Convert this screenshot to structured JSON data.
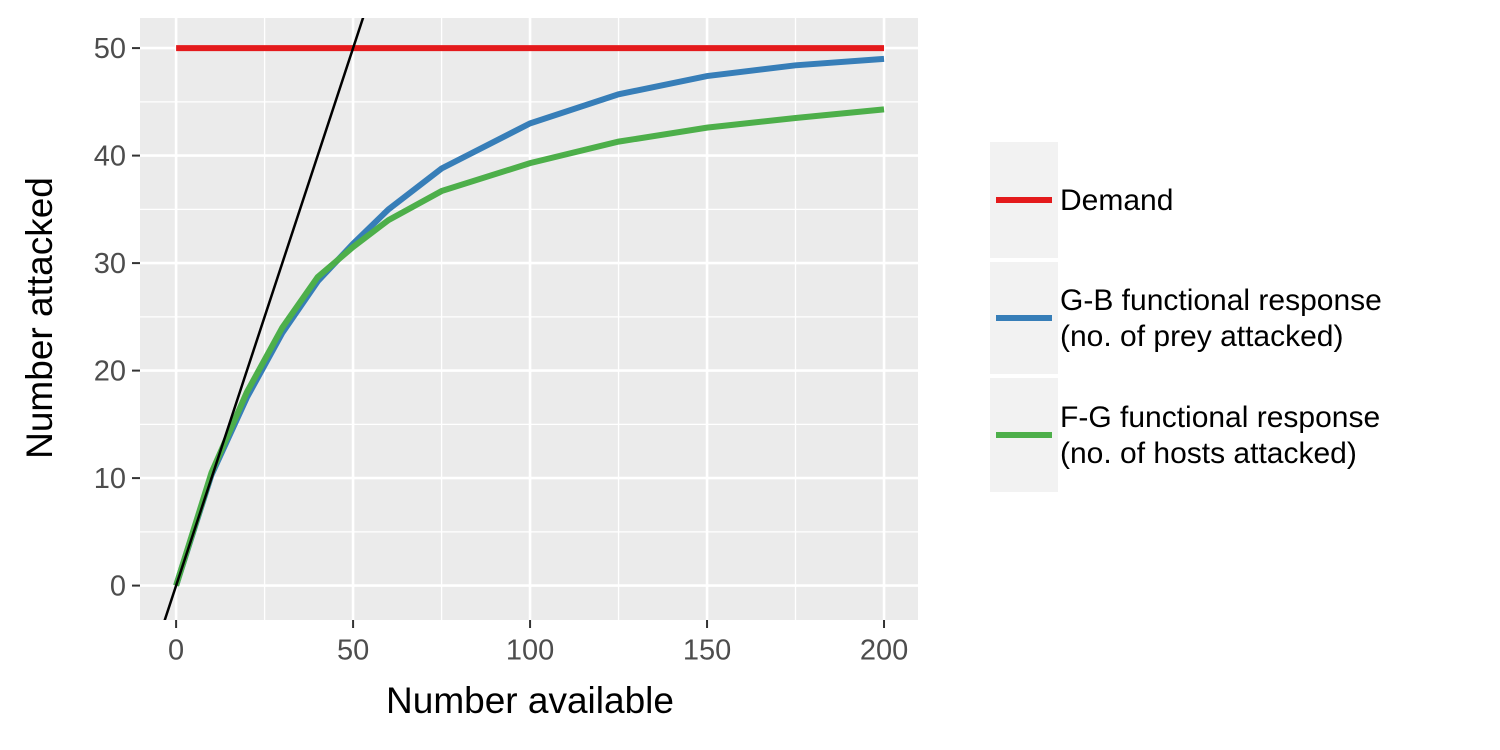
{
  "chart_data": {
    "type": "line",
    "xlabel": "Number available",
    "ylabel": "Number attacked",
    "xlim": [
      -10.2,
      209.6
    ],
    "ylim": [
      -3.2,
      52.8
    ],
    "xticks": [
      0,
      50,
      100,
      150,
      200
    ],
    "yticks": [
      0,
      10,
      20,
      30,
      40,
      50
    ],
    "grid": true,
    "legend": "right",
    "series": [
      {
        "name": "Demand",
        "color": "#e41a1c",
        "x": [
          0,
          200
        ],
        "values": [
          50,
          50
        ]
      },
      {
        "name": "G-B functional response\n(no. of prey attacked)",
        "color": "#377eb8",
        "x": [
          0,
          10,
          20,
          30,
          40,
          50,
          60,
          75,
          100,
          125,
          150,
          175,
          200
        ],
        "values": [
          0,
          10.3,
          17.5,
          23.5,
          28.3,
          31.8,
          35,
          38.8,
          43,
          45.7,
          47.4,
          48.4,
          49
        ]
      },
      {
        "name": "F-G functional response\n(no. of hosts attacked)",
        "color": "#4daf4a",
        "x": [
          0,
          10,
          20,
          30,
          40,
          50,
          60,
          75,
          100,
          125,
          150,
          175,
          200
        ],
        "values": [
          0,
          10.5,
          18,
          24,
          28.7,
          31.5,
          34,
          36.7,
          39.3,
          41.3,
          42.6,
          43.5,
          44.3
        ]
      },
      {
        "color": "#000000",
        "x": [
          -10,
          60
        ],
        "values": [
          -10,
          60
        ]
      }
    ]
  }
}
